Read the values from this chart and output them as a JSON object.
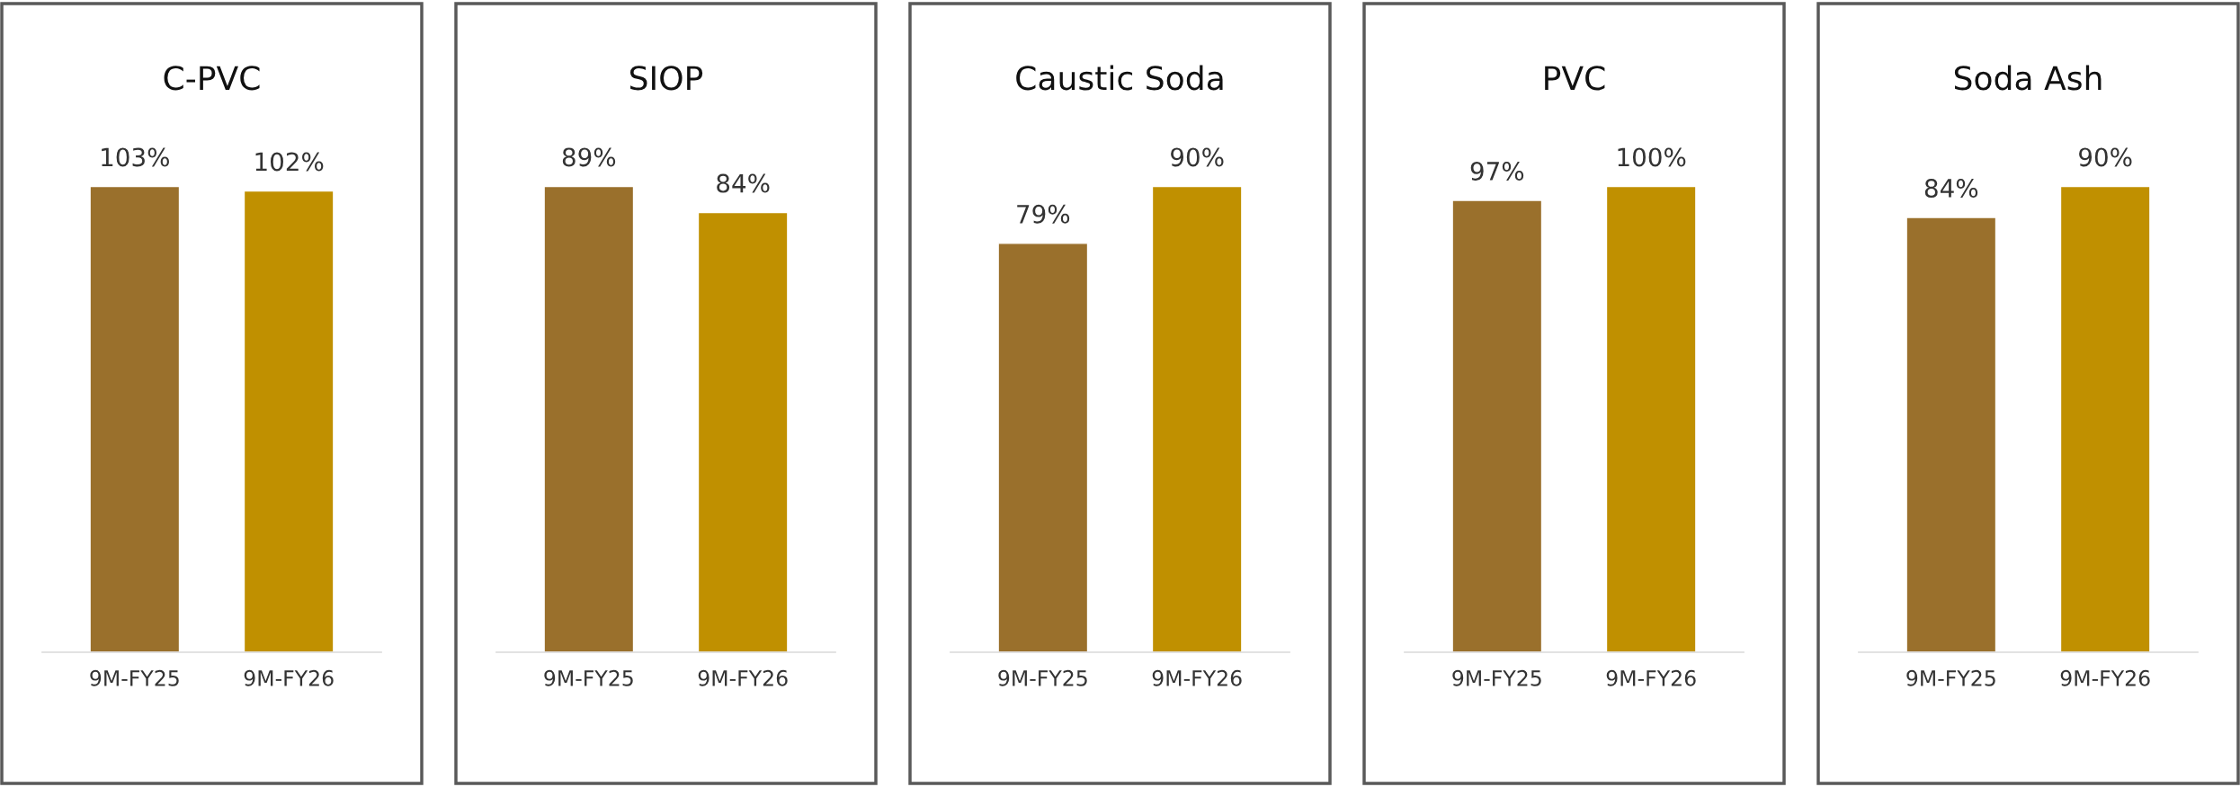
{
  "chart_data": [
    {
      "type": "bar",
      "title": "C-PVC",
      "categories": [
        "9M-FY25",
        "9M-FY26"
      ],
      "values": [
        103,
        102
      ],
      "colors": [
        "#9a702c",
        "#c09000"
      ],
      "data_labels": true,
      "value_labels": [
        "103%",
        "102%"
      ]
    },
    {
      "type": "bar",
      "title": "SIOP",
      "categories": [
        "9M-FY25",
        "9M-FY26"
      ],
      "values": [
        89,
        84
      ],
      "colors": [
        "#9a702c",
        "#c09000"
      ],
      "data_labels": true,
      "value_labels": [
        "89%",
        "84%"
      ]
    },
    {
      "type": "bar",
      "title": "Caustic Soda",
      "categories": [
        "9M-FY25",
        "9M-FY26"
      ],
      "values": [
        79,
        90
      ],
      "colors": [
        "#9a702c",
        "#c09000"
      ],
      "data_labels": true,
      "value_labels": [
        "79%",
        "90%"
      ]
    },
    {
      "type": "bar",
      "title": "PVC",
      "categories": [
        "9M-FY25",
        "9M-FY26"
      ],
      "values": [
        97,
        100
      ],
      "colors": [
        "#9a702c",
        "#c09000"
      ],
      "data_labels": true,
      "value_labels": [
        "97%",
        "100%"
      ]
    },
    {
      "type": "bar",
      "title": "Soda Ash",
      "categories": [
        "9M-FY25",
        "9M-FY26"
      ],
      "values": [
        84,
        90
      ],
      "colors": [
        "#9a702c",
        "#c09000"
      ],
      "data_labels": true,
      "value_labels": [
        "84%",
        "90%"
      ]
    }
  ]
}
